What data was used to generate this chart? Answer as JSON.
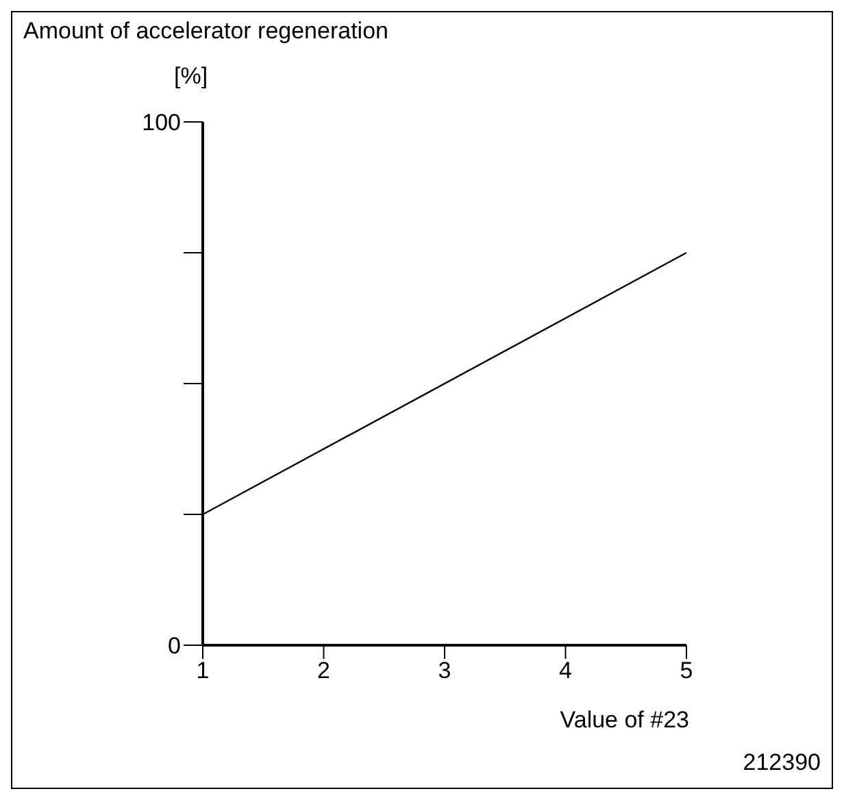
{
  "chart_data": {
    "type": "line",
    "title": "Amount of accelerator regeneration",
    "ylabel": "[%]",
    "xlabel": "Value of #23",
    "annotations": [
      "212390"
    ],
    "x": [
      1,
      5
    ],
    "series": [
      {
        "color": "#000000",
        "values": [
          25,
          75
        ]
      }
    ],
    "xlim": [
      1,
      5
    ],
    "xticks": [
      1,
      2,
      3,
      4,
      5
    ],
    "ylim": [
      0,
      100
    ],
    "yticks": [
      0,
      {
        "value": 25,
        "label": null
      },
      {
        "value": 50,
        "label": null
      },
      {
        "value": 75,
        "label": null
      },
      100
    ],
    "grid": false,
    "legend": false,
    "marker": "none",
    "line_style": "solid"
  }
}
